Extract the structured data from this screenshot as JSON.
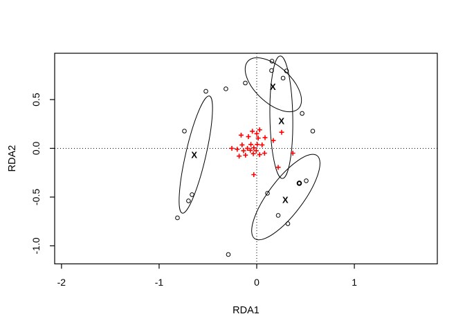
{
  "chart_data": {
    "type": "scatter",
    "title": "",
    "xlabel": "RDA1",
    "ylabel": "RDA2",
    "xlim": [
      -2.07,
      1.85
    ],
    "ylim": [
      -1.185,
      0.975
    ],
    "x_ticks": [
      -2,
      -1,
      0,
      1
    ],
    "x_tick_labels": [
      "-2",
      "-1",
      "0",
      "1"
    ],
    "y_ticks": [
      0.5,
      0.0,
      -0.5,
      -1.0
    ],
    "y_tick_labels": [
      "0.5",
      "0.0",
      "-0.5",
      "-1.0"
    ],
    "grid": false,
    "legend": "none",
    "reference_lines": {
      "h": 0,
      "v": 0,
      "style": "dotted"
    },
    "colors": {
      "sites": "#000000",
      "species": "#FF0000",
      "centroids": "#2222DD",
      "frame": "#000000",
      "ellipse": "#000000"
    },
    "series": [
      {
        "name": "sites",
        "marker": "open-circle",
        "color": "#000000",
        "points": [
          [
            0.156,
            0.894
          ],
          [
            0.152,
            0.798
          ],
          [
            0.305,
            0.794
          ],
          [
            0.27,
            0.72
          ],
          [
            -0.117,
            0.67
          ],
          [
            -0.521,
            0.585
          ],
          [
            -0.316,
            0.61
          ],
          [
            0.465,
            0.358
          ],
          [
            0.574,
            0.177
          ],
          [
            -0.741,
            0.177
          ],
          [
            0.436,
            -0.358
          ],
          [
            0.507,
            -0.333
          ],
          [
            0.11,
            -0.461
          ],
          [
            -0.663,
            -0.475
          ],
          [
            -0.699,
            -0.539
          ],
          [
            0.22,
            -0.688
          ],
          [
            0.319,
            -0.773
          ],
          [
            -0.812,
            -0.713
          ],
          [
            -0.291,
            -1.089
          ]
        ],
        "bold_point_index": 10
      },
      {
        "name": "species",
        "marker": "plus",
        "color": "#FF0000",
        "points": [
          [
            -0.045,
            0.175
          ],
          [
            0.03,
            0.19
          ],
          [
            0.0,
            0.15
          ],
          [
            0.255,
            0.165
          ],
          [
            -0.16,
            0.135
          ],
          [
            -0.085,
            0.12
          ],
          [
            0.015,
            0.105
          ],
          [
            0.085,
            0.11
          ],
          [
            0.17,
            0.08
          ],
          [
            -0.15,
            0.035
          ],
          [
            -0.06,
            0.04
          ],
          [
            0.005,
            0.04
          ],
          [
            0.055,
            0.035
          ],
          [
            -0.255,
            0.0
          ],
          [
            -0.2,
            -0.01
          ],
          [
            -0.135,
            -0.025
          ],
          [
            -0.065,
            -0.02
          ],
          [
            -0.005,
            -0.025
          ],
          [
            -0.095,
            0.0
          ],
          [
            -0.03,
            0.005
          ],
          [
            0.08,
            -0.05
          ],
          [
            -0.18,
            -0.08
          ],
          [
            -0.115,
            -0.07
          ],
          [
            -0.035,
            -0.055
          ],
          [
            0.03,
            -0.065
          ],
          [
            0.37,
            -0.05
          ],
          [
            0.22,
            -0.195
          ],
          [
            -0.03,
            -0.27
          ]
        ]
      },
      {
        "name": "centroids",
        "marker": "X",
        "color": "#2222DD",
        "points": [
          [
            0.165,
            0.63
          ],
          [
            0.253,
            0.28
          ],
          [
            -0.64,
            -0.067
          ],
          [
            0.293,
            -0.528
          ]
        ]
      }
    ],
    "ellipses": [
      {
        "cx": 0.17,
        "cy": 0.652,
        "a": 0.355,
        "b": 0.184,
        "angle": 43
      },
      {
        "cx": 0.252,
        "cy": 0.319,
        "a": 0.628,
        "b": 0.117,
        "angle": -91
      },
      {
        "cx": -0.624,
        "cy": -0.064,
        "a": 0.616,
        "b": 0.103,
        "angle": -77
      },
      {
        "cx": 0.298,
        "cy": -0.5,
        "a": 0.532,
        "b": 0.177,
        "angle": -53
      }
    ]
  }
}
